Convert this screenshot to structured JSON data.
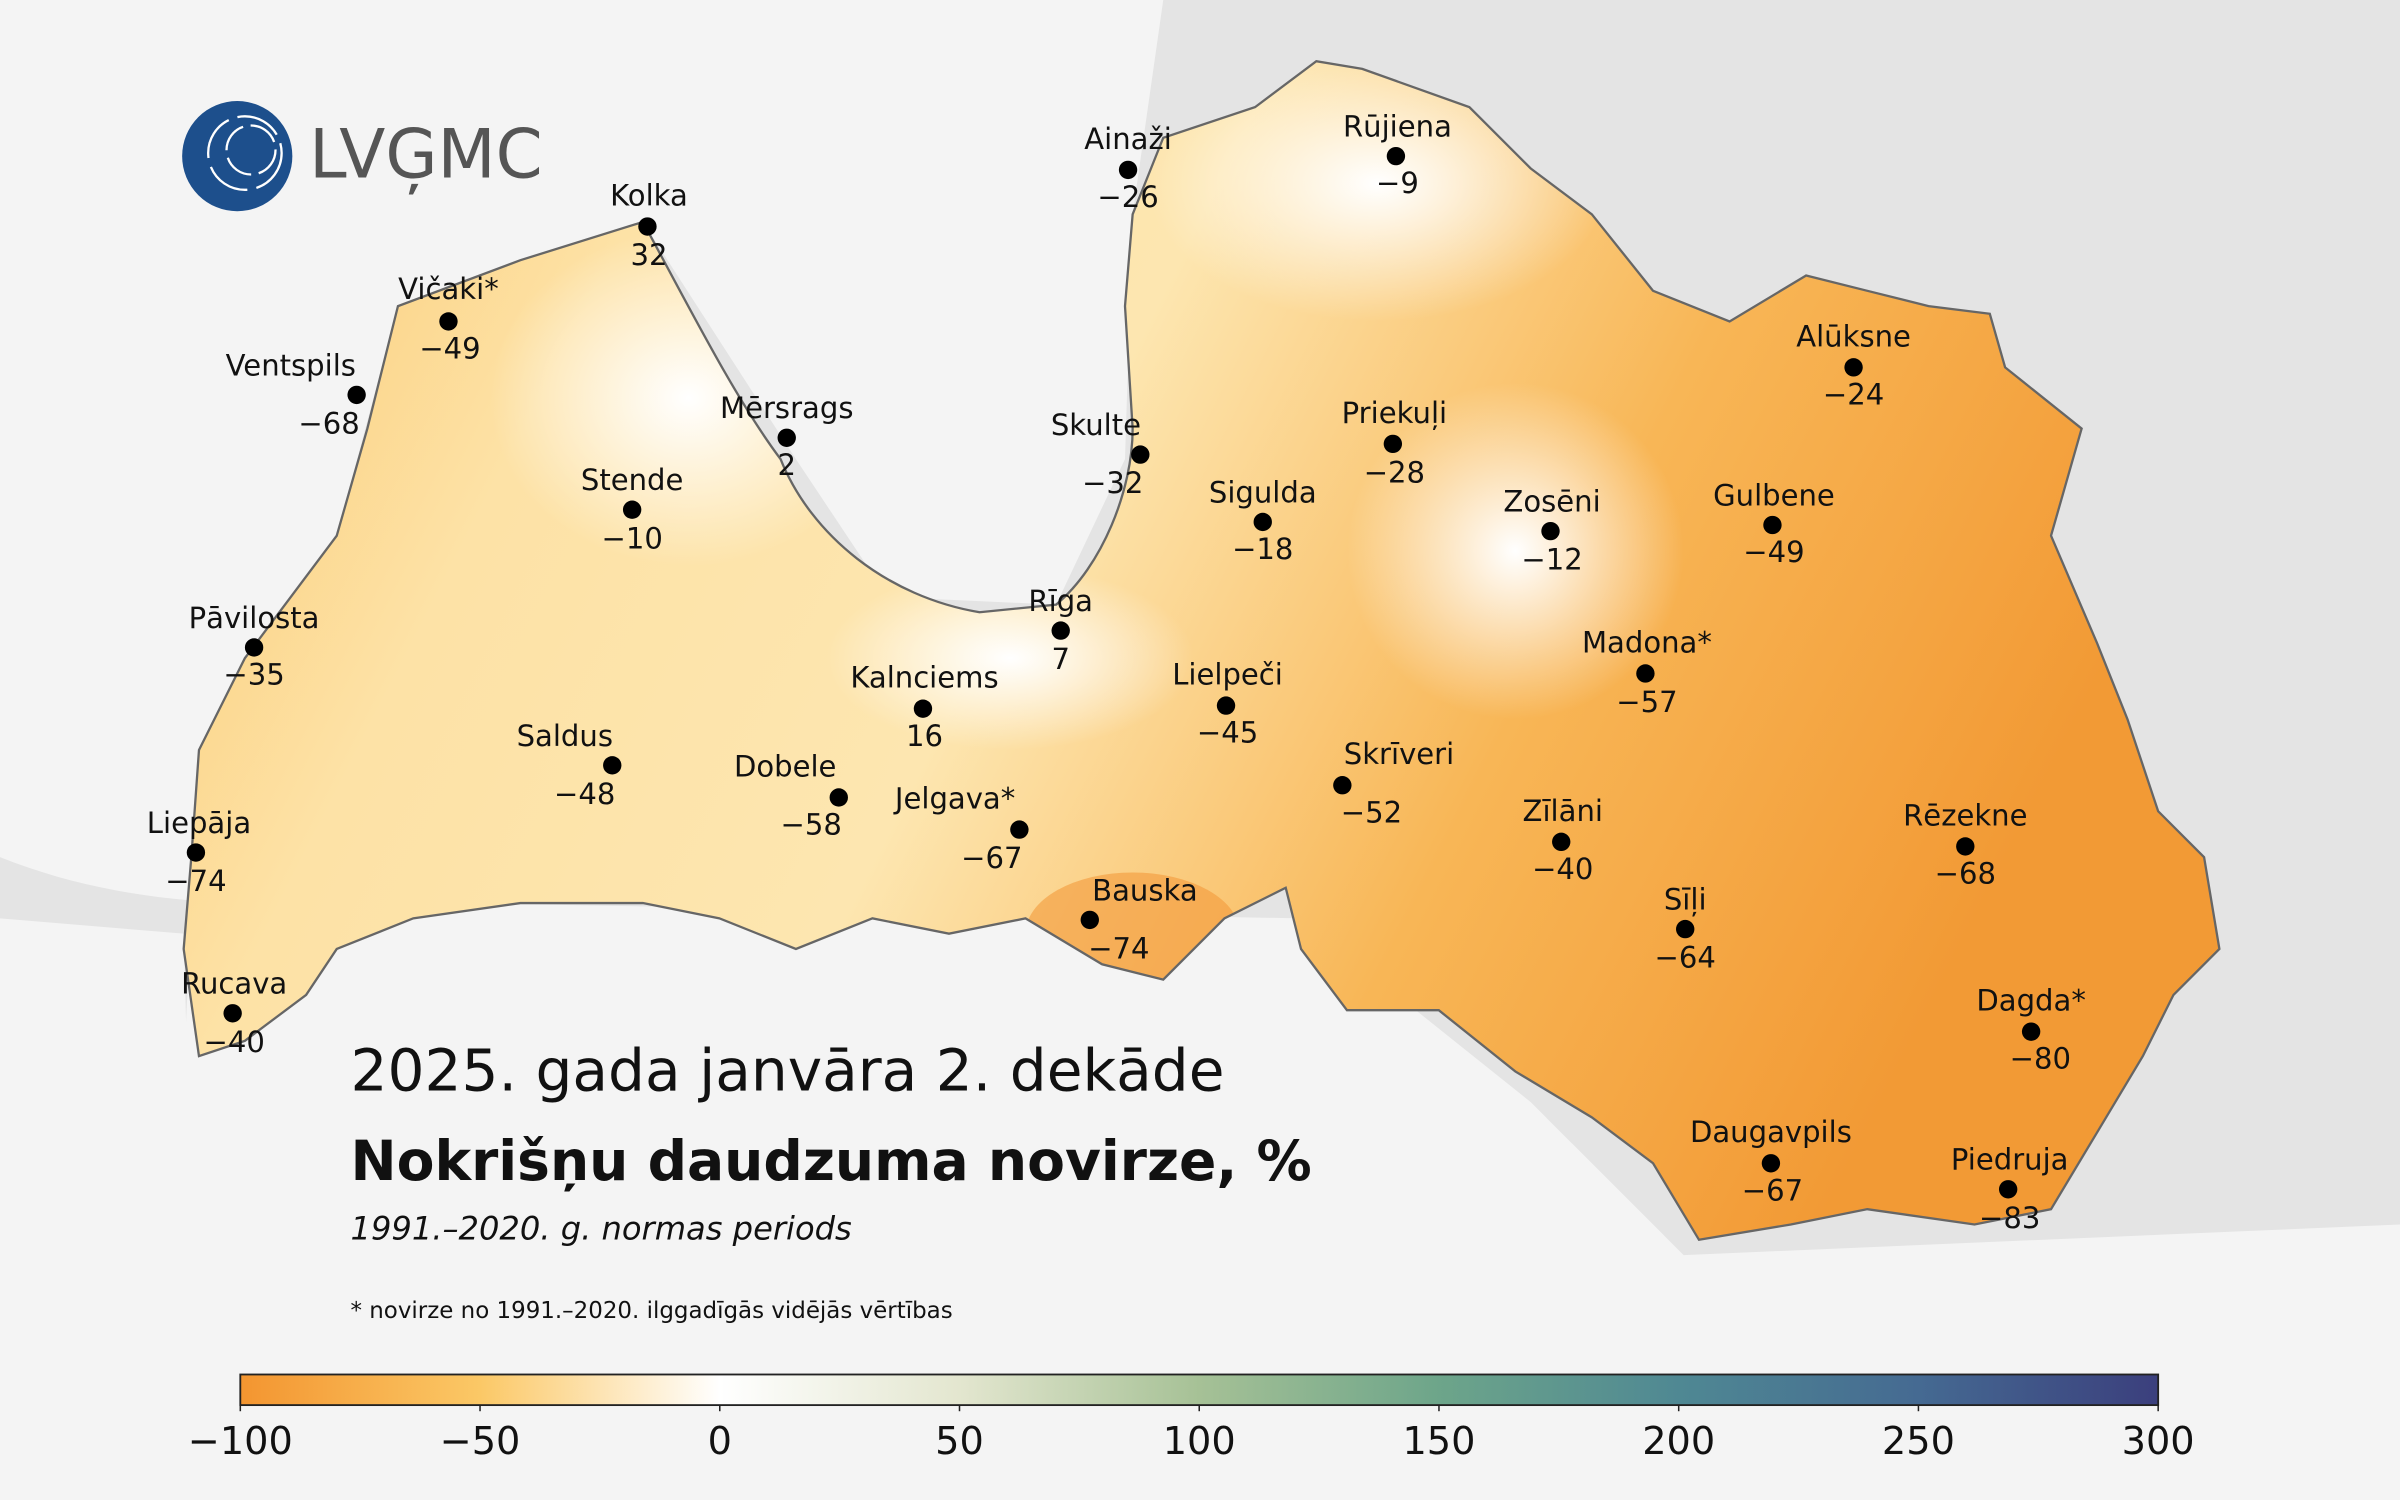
{
  "logo": {
    "text": "LVĢMC"
  },
  "title": "2025. gada janvāra 2. dekāde",
  "subtitle": "Nokrišņu daudzuma novirze, %",
  "period": "1991.–2020. g. normas periods",
  "footnote": "* novirze no 1991.–2020. ilggadīgās vidējās vērtības",
  "stations": [
    {
      "name": "Kolka",
      "value": 32,
      "label": "32"
    },
    {
      "name": "Vičaki*",
      "value": -49,
      "label": "−49"
    },
    {
      "name": "Ventspils",
      "value": -68,
      "label": "−68"
    },
    {
      "name": "Mērsrags",
      "value": 2,
      "label": "2"
    },
    {
      "name": "Stende",
      "value": -10,
      "label": "−10"
    },
    {
      "name": "Pāvilosta",
      "value": -35,
      "label": "−35"
    },
    {
      "name": "Saldus",
      "value": -48,
      "label": "−48"
    },
    {
      "name": "Liepāja",
      "value": -74,
      "label": "−74"
    },
    {
      "name": "Rucava",
      "value": -40,
      "label": "−40"
    },
    {
      "name": "Dobele",
      "value": -58,
      "label": "−58"
    },
    {
      "name": "Kalnciems",
      "value": 16,
      "label": "16"
    },
    {
      "name": "Jelgava*",
      "value": -67,
      "label": "−67"
    },
    {
      "name": "Bauska",
      "value": -74,
      "label": "−74"
    },
    {
      "name": "Rīga",
      "value": 7,
      "label": "7"
    },
    {
      "name": "Lielpeči",
      "value": -45,
      "label": "−45"
    },
    {
      "name": "Skrīveri",
      "value": -52,
      "label": "−52"
    },
    {
      "name": "Ainaži",
      "value": -26,
      "label": "−26"
    },
    {
      "name": "Skulte",
      "value": -32,
      "label": "−32"
    },
    {
      "name": "Sigulda",
      "value": -18,
      "label": "−18"
    },
    {
      "name": "Rūjiena",
      "value": -9,
      "label": "−9"
    },
    {
      "name": "Priekuļi",
      "value": -28,
      "label": "−28"
    },
    {
      "name": "Zosēni",
      "value": -12,
      "label": "−12"
    },
    {
      "name": "Madona*",
      "value": -57,
      "label": "−57"
    },
    {
      "name": "Gulbene",
      "value": -49,
      "label": "−49"
    },
    {
      "name": "Alūksne",
      "value": -24,
      "label": "−24"
    },
    {
      "name": "Zīlāni",
      "value": -40,
      "label": "−40"
    },
    {
      "name": "Sīļi",
      "value": -64,
      "label": "−64"
    },
    {
      "name": "Rēzekne",
      "value": -68,
      "label": "−68"
    },
    {
      "name": "Dagda*",
      "value": -80,
      "label": "−80"
    },
    {
      "name": "Daugavpils",
      "value": -67,
      "label": "−67"
    },
    {
      "name": "Piedruja",
      "value": -83,
      "label": "−83"
    }
  ],
  "colorbar": {
    "range": [
      -100,
      300
    ],
    "ticks": [
      {
        "value": -100,
        "label": "−100"
      },
      {
        "value": -50,
        "label": "−50"
      },
      0,
      50,
      100,
      150,
      200,
      250,
      300
    ],
    "colors": [
      "#f39530",
      "#fbc866",
      "#ffffff",
      "#e3e6cf",
      "#a6c196",
      "#6da58a",
      "#4f8893",
      "#456a92",
      "#3b3f7d"
    ]
  }
}
